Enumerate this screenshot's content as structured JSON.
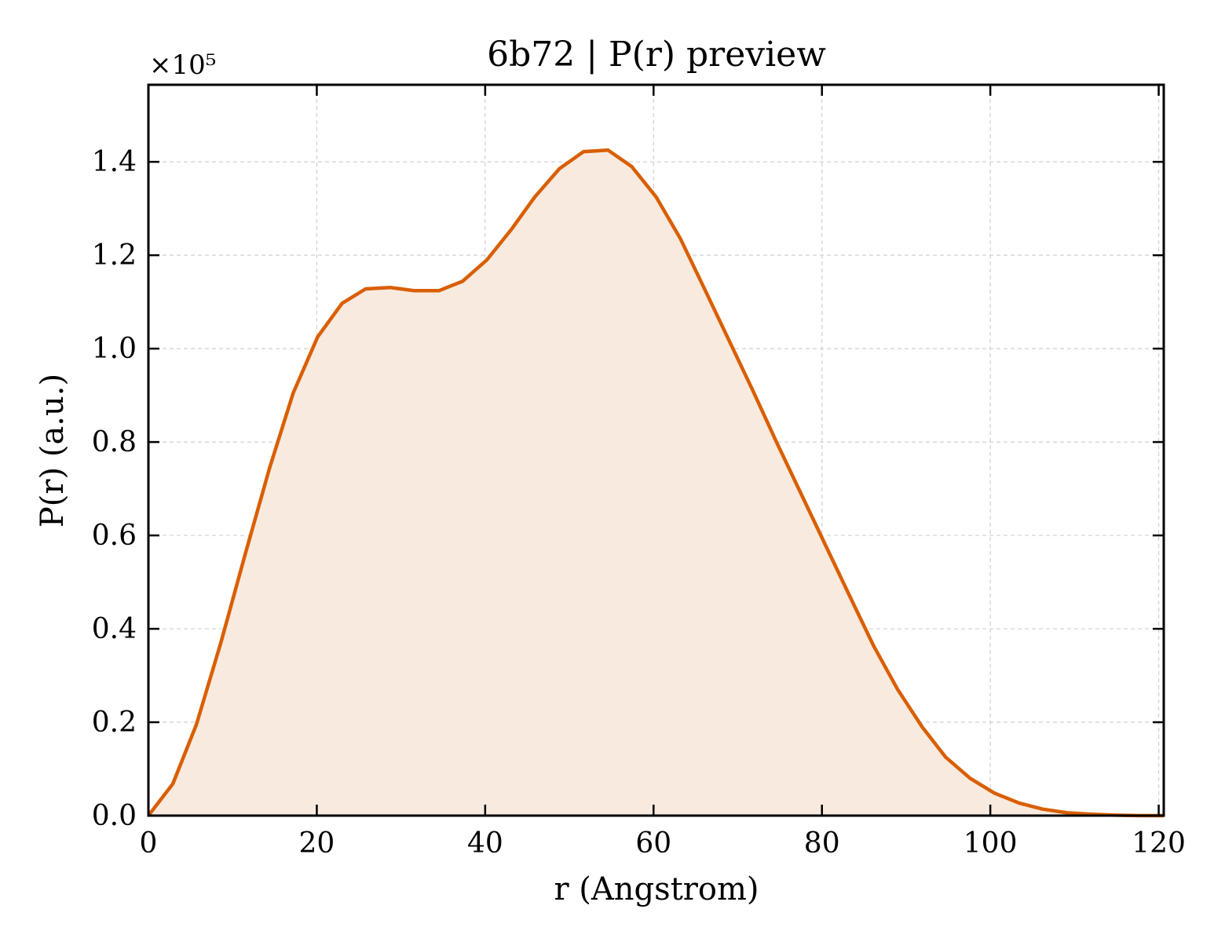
{
  "chart_data": {
    "type": "area",
    "title": "6b72 | P(r) preview",
    "xlabel": "r (Angstrom)",
    "ylabel": "P(r) (a.u.)",
    "y_multiplier_label": "×10⁵",
    "xlim": [
      0,
      120.6
    ],
    "ylim": [
      0,
      1.565
    ],
    "x_ticks": [
      0,
      20,
      40,
      60,
      80,
      100,
      120
    ],
    "x_tick_labels": [
      "0",
      "20",
      "40",
      "60",
      "80",
      "100",
      "120"
    ],
    "y_ticks": [
      0.0,
      0.2,
      0.4,
      0.6,
      0.8,
      1.0,
      1.2,
      1.4
    ],
    "y_tick_labels": [
      "0.0",
      "0.2",
      "0.4",
      "0.6",
      "0.8",
      "1.0",
      "1.2",
      "1.4"
    ],
    "grid": true,
    "line_color": "#d95f02",
    "fill_color": "#f9eadf",
    "series": [
      {
        "x": [
          0,
          2.9,
          5.7,
          8.6,
          11.5,
          14.4,
          17.2,
          20.1,
          23.0,
          25.8,
          28.7,
          31.6,
          34.5,
          37.3,
          40.2,
          43.1,
          45.9,
          48.8,
          51.7,
          54.6,
          57.4,
          60.3,
          63.2,
          66.0,
          68.9,
          71.8,
          74.6,
          77.5,
          80.4,
          83.3,
          86.1,
          89.0,
          91.9,
          94.7,
          97.6,
          100.5,
          103.4,
          106.2,
          109.1,
          112.0,
          114.8,
          117.7,
          120.6
        ],
        "y": [
          0.0,
          0.068,
          0.195,
          0.37,
          0.56,
          0.745,
          0.905,
          1.025,
          1.097,
          1.128,
          1.131,
          1.124,
          1.124,
          1.144,
          1.19,
          1.255,
          1.325,
          1.385,
          1.422,
          1.425,
          1.39,
          1.325,
          1.235,
          1.13,
          1.02,
          0.91,
          0.8,
          0.69,
          0.58,
          0.47,
          0.365,
          0.27,
          0.19,
          0.125,
          0.08,
          0.048,
          0.027,
          0.014,
          0.006,
          0.003,
          0.001,
          0.0,
          0.0
        ]
      }
    ]
  }
}
